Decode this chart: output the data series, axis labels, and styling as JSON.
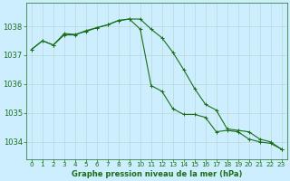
{
  "background_color": "#cceeff",
  "grid_color": "#b8d8d8",
  "line_color": "#1a6e1a",
  "title": "Graphe pression niveau de la mer (hPa)",
  "ylabel_values": [
    1034,
    1035,
    1036,
    1037,
    1038
  ],
  "xlim": [
    -0.5,
    23.5
  ],
  "ylim": [
    1033.4,
    1038.8
  ],
  "series1": [
    1037.2,
    1037.5,
    1037.35,
    1037.7,
    1037.7,
    1037.85,
    1037.95,
    1038.05,
    1038.2,
    1038.25,
    1038.25,
    1037.9,
    1037.6,
    1037.1,
    1036.5,
    1035.85,
    1035.3,
    1035.1,
    1034.45,
    1034.4,
    1034.35,
    1034.1,
    1034.0,
    1033.75
  ],
  "series2": [
    1037.2,
    1037.5,
    1037.35,
    1037.75,
    1037.72,
    1037.82,
    1037.95,
    1038.05,
    1038.2,
    1038.25,
    1037.9,
    1035.95,
    1035.75,
    1035.15,
    1034.95,
    1034.95,
    1034.85,
    1034.35,
    1034.4,
    1034.35,
    1034.1,
    1034.0,
    1033.95,
    1033.75
  ],
  "xtick_labels": [
    "0",
    "1",
    "2",
    "3",
    "4",
    "5",
    "6",
    "7",
    "8",
    "9",
    "10",
    "11",
    "12",
    "13",
    "14",
    "15",
    "16",
    "17",
    "18",
    "19",
    "20",
    "21",
    "22",
    "23"
  ],
  "title_fontsize": 6.0,
  "ytick_fontsize": 6.0,
  "xtick_fontsize": 5.2
}
